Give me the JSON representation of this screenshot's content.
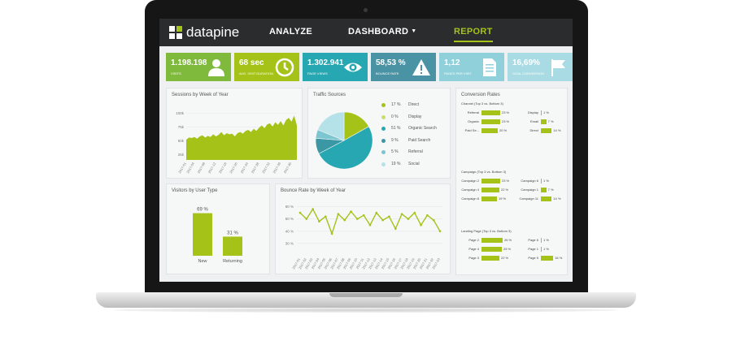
{
  "brand": {
    "logo_text": "datapine",
    "accent": "#a5c219"
  },
  "nav": {
    "analyze": "ANALYZE",
    "dashboard": "DASHBOARD",
    "report": "REPORT"
  },
  "kpis": [
    {
      "value": "1.198.198",
      "label": "VISITS",
      "color": "#7fba3c",
      "icon": "user-icon"
    },
    {
      "value": "68 sec",
      "label": "AVG. VISIT DURATION",
      "color": "#a5c219",
      "icon": "clock-icon"
    },
    {
      "value": "1.302.941",
      "label": "PAGE VIEWS",
      "color": "#26a7b2",
      "icon": "eye-icon"
    },
    {
      "value": "58,53 %",
      "label": "BOUNCE RATE",
      "color": "#4a93a5",
      "icon": "warning-icon"
    },
    {
      "value": "1,12",
      "label": "PAGES PER VISIT",
      "color": "#8fd0da",
      "icon": "document-icon"
    },
    {
      "value": "16,69%",
      "label": "GOAL CONVERSION",
      "color": "#a8dbe3",
      "icon": "flag-icon"
    }
  ],
  "sessions": {
    "title": "Sessions by Week of Year",
    "chart_data": {
      "type": "area",
      "title": "Sessions by Week of Year",
      "yticks": [
        "100k",
        "75k",
        "50k",
        "25k"
      ],
      "ylim": [
        15,
        110
      ],
      "x": [
        "2017-01",
        "2017-02",
        "2017-03",
        "2017-04",
        "2017-05",
        "2017-06",
        "2017-07",
        "2017-08",
        "2017-09",
        "2017-10",
        "2017-11",
        "2017-12",
        "2017-13",
        "2017-14",
        "2017-15",
        "2017-16",
        "2017-17",
        "2017-18",
        "2017-19",
        "2017-20",
        "2017-21",
        "2017-22",
        "2017-23",
        "2017-24",
        "2017-25",
        "2017-26",
        "2017-27",
        "2017-28",
        "2017-29",
        "2017-30",
        "2017-31",
        "2017-32",
        "2017-33",
        "2017-34",
        "2017-35",
        "2017-36",
        "2017-37",
        "2017-38",
        "2017-39",
        "2017-40",
        "2017-41",
        "2017-42"
      ],
      "values": [
        52,
        56,
        55,
        57,
        54,
        58,
        60,
        56,
        59,
        57,
        62,
        58,
        61,
        66,
        60,
        64,
        62,
        63,
        58,
        64,
        66,
        63,
        68,
        70,
        66,
        72,
        68,
        74,
        78,
        73,
        80,
        82,
        76,
        84,
        79,
        86,
        78,
        88,
        92,
        85,
        96,
        78
      ],
      "xticks_shown": [
        "2017-01",
        "2017-04",
        "2017-08",
        "2017-12",
        "2017-16",
        "2017-20",
        "2017-24",
        "2017-28",
        "2017-32",
        "2017-36",
        "2017-40"
      ]
    }
  },
  "traffic": {
    "title": "Traffic Sources",
    "chart_data": {
      "type": "pie",
      "title": "Traffic Sources",
      "categories": [
        "Direct",
        "Display",
        "Organic Search",
        "Paid Search",
        "Referral",
        "Social"
      ],
      "labels": [
        "17 %",
        "0 %",
        "51 %",
        "9 %",
        "5 %",
        "19 %"
      ],
      "values": [
        17,
        0,
        51,
        9,
        5,
        19
      ],
      "colors": [
        "#a5c219",
        "#c9dd6a",
        "#26a7b2",
        "#3a97a3",
        "#7cc6d2",
        "#b5e1e8"
      ]
    }
  },
  "conversion": {
    "title": "Conversion Rates",
    "channel": {
      "title": "Channel (Top 3 vs. Bottom 3)",
      "top": [
        {
          "label": "Referral",
          "pct": "23 %",
          "value": 23
        },
        {
          "label": "Organic",
          "pct": "23 %",
          "value": 23
        },
        {
          "label": "Paid Se...",
          "pct": "20 %",
          "value": 20
        }
      ],
      "bottom": [
        {
          "label": "Display",
          "pct": "1 %",
          "value": 1
        },
        {
          "label": "Email",
          "pct": "7 %",
          "value": 7
        },
        {
          "label": "Direct",
          "pct": "14 %",
          "value": 14
        }
      ]
    },
    "campaign": {
      "title": "Campaign (Top 3 vs. Bottom 3)",
      "top": [
        {
          "label": "Campaign 2",
          "pct": "23 %",
          "value": 23
        },
        {
          "label": "Campaign 4",
          "pct": "22 %",
          "value": 22
        },
        {
          "label": "Campaign 8",
          "pct": "19 %",
          "value": 19
        }
      ],
      "bottom": [
        {
          "label": "Campaign 6",
          "pct": "1 %",
          "value": 1
        },
        {
          "label": "Campaign 1",
          "pct": "7 %",
          "value": 7
        },
        {
          "label": "Campaign 11",
          "pct": "14 %",
          "value": 14
        }
      ]
    },
    "landing": {
      "title": "Landing Page (Top 3 vs. Bottom 3)",
      "top": [
        {
          "label": "Page 2",
          "pct": "26 %",
          "value": 26
        },
        {
          "label": "Page 4",
          "pct": "25 %",
          "value": 25
        },
        {
          "label": "Page 3",
          "pct": "22 %",
          "value": 22
        }
      ],
      "bottom": [
        {
          "label": "Page 6",
          "pct": "1 %",
          "value": 1
        },
        {
          "label": "Page 1",
          "pct": "1 %",
          "value": 1
        },
        {
          "label": "Page 5",
          "pct": "16 %",
          "value": 16
        }
      ]
    }
  },
  "visitors": {
    "title": "Visitors by User Type",
    "chart_data": {
      "type": "bar",
      "title": "Visitors by User Type",
      "categories": [
        "New",
        "Returning"
      ],
      "values": [
        69,
        31
      ],
      "labels": [
        "69 %",
        "31 %"
      ],
      "ylim": [
        0,
        100
      ]
    }
  },
  "bounce": {
    "title": "Bounce Rate by Week of Year",
    "chart_data": {
      "type": "line",
      "title": "Bounce Rate by Week of Year",
      "yticks": [
        "60 %",
        "50 %",
        "40 %",
        "30 %"
      ],
      "ylim": [
        20,
        65
      ],
      "x": [
        "2017-01",
        "2017-02",
        "2017-03",
        "2017-04",
        "2017-05",
        "2017-06",
        "2017-07",
        "2017-08",
        "2017-09",
        "2017-10",
        "2017-11",
        "2017-12",
        "2017-13",
        "2017-14",
        "2017-15",
        "2017-16",
        "2017-17",
        "2017-18",
        "2017-19",
        "2017-20",
        "2017-21",
        "2017-22",
        "2017-23"
      ],
      "values": [
        55,
        50,
        58,
        48,
        52,
        38,
        54,
        49,
        56,
        50,
        53,
        45,
        55,
        49,
        52,
        42,
        54,
        50,
        55,
        45,
        53,
        49,
        40
      ],
      "xticks_shown": [
        "2017-01",
        "2017-02",
        "2017-03",
        "2017-04",
        "2017-05",
        "2017-06",
        "2017-07",
        "2017-08",
        "2017-09",
        "2017-10",
        "2017-11",
        "2017-12",
        "2017-13",
        "2017-14",
        "2017-15",
        "2017-16",
        "2017-17",
        "2017-18",
        "2017-19",
        "2017-20",
        "2017-21",
        "2017-22",
        "2017-23"
      ]
    }
  }
}
